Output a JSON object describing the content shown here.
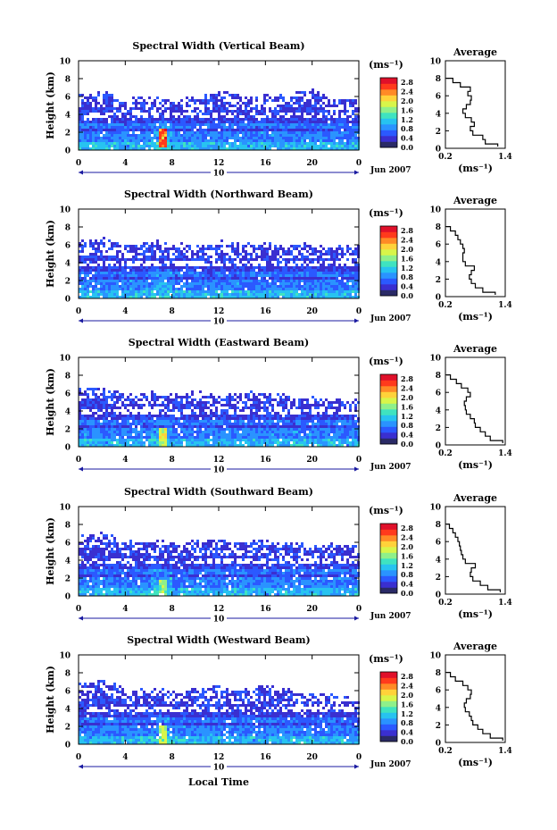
{
  "figure": {
    "xlabel": "Local Time",
    "date_label": "Jun 2007",
    "date_marker": "10",
    "unit_label": "(ms⁻¹)",
    "average_title": "Average"
  },
  "colorbar": {
    "ticks": [
      "0.0",
      "0.4",
      "0.8",
      "1.2",
      "1.6",
      "2.0",
      "2.4",
      "2.8"
    ],
    "range": [
      0.0,
      3.0
    ],
    "colors": [
      "#2a2a66",
      "#3a2fd0",
      "#2b59ff",
      "#2a93ff",
      "#27c3f0",
      "#3fe3c0",
      "#8ff08a",
      "#d8f54a",
      "#ffd23a",
      "#ff8a26",
      "#ff3a1c",
      "#e0102a"
    ]
  },
  "chart_data": [
    {
      "type": "heatmap",
      "title": "Spectral Width (Vertical Beam)",
      "xlabel": "",
      "ylabel": "Height (km)",
      "xlim": [
        0,
        24
      ],
      "ylim": [
        0,
        10
      ],
      "xticks": [
        "0",
        "4",
        "8",
        "12",
        "16",
        "20",
        "0"
      ],
      "yticks": [
        "0",
        "2",
        "4",
        "6",
        "8",
        "10"
      ],
      "colorbar_label": "(ms⁻¹)",
      "values_description": "",
      "top_height_km": [
        6.0,
        6.4,
        5.5,
        5.6,
        5.4,
        5.6,
        6.3,
        5.7,
        5.8,
        6.3,
        6.5,
        5.4,
        5.6
      ],
      "top_times_h": [
        0,
        2,
        4,
        6,
        8,
        10,
        12,
        14,
        16,
        18,
        20,
        22,
        24
      ],
      "hotspot": {
        "time_h": 7,
        "height_km": 1.5,
        "value": 2.8
      },
      "average_profile": {
        "title": "Average",
        "xlabel": "(ms⁻¹)",
        "xlim": [
          0.2,
          1.4
        ],
        "ylim": [
          0,
          10
        ],
        "xticks": [
          "0.2",
          "1.4"
        ],
        "yticks": [
          "0",
          "2",
          "4",
          "6",
          "8",
          "10"
        ],
        "height_km": [
          0.2,
          0.5,
          1.0,
          1.5,
          2.0,
          2.5,
          3.0,
          3.5,
          4.0,
          4.5,
          5.0,
          5.5,
          6.0,
          6.5,
          7.0,
          7.5,
          8.0
        ],
        "width_ms": [
          1.25,
          1.0,
          0.95,
          0.75,
          0.7,
          0.78,
          0.72,
          0.6,
          0.55,
          0.62,
          0.7,
          0.72,
          0.65,
          0.7,
          0.5,
          0.35,
          0.22
        ]
      }
    },
    {
      "type": "heatmap",
      "title": "Spectral Width (Northward Beam)",
      "xlabel": "",
      "ylabel": "Height (km)",
      "xlim": [
        0,
        24
      ],
      "ylim": [
        0,
        10
      ],
      "xticks": [
        "0",
        "4",
        "8",
        "12",
        "16",
        "20",
        "0"
      ],
      "yticks": [
        "0",
        "2",
        "4",
        "6",
        "8",
        "10"
      ],
      "colorbar_label": "(ms⁻¹)",
      "top_height_km": [
        6.2,
        6.4,
        5.8,
        6.2,
        5.8,
        5.9,
        6.1,
        6.0,
        6.0,
        5.8,
        5.9,
        5.8,
        5.6
      ],
      "top_times_h": [
        0,
        2,
        4,
        6,
        8,
        10,
        12,
        14,
        16,
        18,
        20,
        22,
        24
      ],
      "hotspot": {
        "time_h": 7,
        "height_km": 1.5,
        "value": 1.2
      },
      "average_profile": {
        "title": "Average",
        "xlabel": "(ms⁻¹)",
        "xlim": [
          0.2,
          1.4
        ],
        "ylim": [
          0,
          10
        ],
        "xticks": [
          "0.2",
          "1.4"
        ],
        "yticks": [
          "0",
          "2",
          "4",
          "6",
          "8",
          "10"
        ],
        "height_km": [
          0.2,
          0.5,
          1.0,
          1.5,
          2.0,
          2.5,
          3.0,
          3.5,
          4.0,
          4.5,
          5.0,
          5.5,
          6.0,
          6.5,
          7.0,
          7.5,
          8.0
        ],
        "width_ms": [
          1.2,
          0.95,
          0.8,
          0.72,
          0.68,
          0.72,
          0.78,
          0.6,
          0.55,
          0.55,
          0.58,
          0.55,
          0.5,
          0.45,
          0.4,
          0.3,
          0.22
        ]
      }
    },
    {
      "type": "heatmap",
      "title": "Spectral Width (Eastward Beam)",
      "xlabel": "",
      "ylabel": "Height (km)",
      "xlim": [
        0,
        24
      ],
      "ylim": [
        0,
        10
      ],
      "xticks": [
        "0",
        "4",
        "8",
        "12",
        "16",
        "20",
        "0"
      ],
      "yticks": [
        "0",
        "2",
        "4",
        "6",
        "8",
        "10"
      ],
      "colorbar_label": "(ms⁻¹)",
      "top_height_km": [
        6.5,
        6.6,
        5.6,
        5.8,
        5.7,
        5.9,
        5.6,
        5.9,
        5.7,
        5.5,
        5.4,
        5.1,
        5.0
      ],
      "top_times_h": [
        0,
        2,
        4,
        6,
        8,
        10,
        12,
        14,
        16,
        18,
        20,
        22,
        24
      ],
      "hotspot": {
        "time_h": 7,
        "height_km": 1.2,
        "value": 2.2
      },
      "average_profile": {
        "title": "Average",
        "xlabel": "(ms⁻¹)",
        "xlim": [
          0.2,
          1.4
        ],
        "ylim": [
          0,
          10
        ],
        "xticks": [
          "0.2",
          "1.4"
        ],
        "yticks": [
          "0",
          "2",
          "4",
          "6",
          "8",
          "10"
        ],
        "height_km": [
          0.2,
          0.5,
          1.0,
          1.5,
          2.0,
          2.5,
          3.0,
          3.5,
          4.0,
          4.5,
          5.0,
          5.5,
          6.0,
          6.5,
          7.0,
          7.5,
          8.0
        ],
        "width_ms": [
          1.35,
          1.1,
          1.0,
          0.9,
          0.8,
          0.78,
          0.7,
          0.62,
          0.6,
          0.58,
          0.62,
          0.7,
          0.65,
          0.52,
          0.42,
          0.3,
          0.22
        ]
      }
    },
    {
      "type": "heatmap",
      "title": "Spectral Width (Southward Beam)",
      "xlabel": "",
      "ylabel": "Height (km)",
      "xlim": [
        0,
        24
      ],
      "ylim": [
        0,
        10
      ],
      "xticks": [
        "0",
        "4",
        "8",
        "12",
        "16",
        "20",
        "0"
      ],
      "yticks": [
        "0",
        "2",
        "4",
        "6",
        "8",
        "10"
      ],
      "colorbar_label": "(ms⁻¹)",
      "top_height_km": [
        6.5,
        7.0,
        5.8,
        6.0,
        5.8,
        5.9,
        6.0,
        6.0,
        5.8,
        5.6,
        5.6,
        5.6,
        5.4
      ],
      "top_times_h": [
        0,
        2,
        4,
        6,
        8,
        10,
        12,
        14,
        16,
        18,
        20,
        22,
        24
      ],
      "hotspot": {
        "time_h": 7,
        "height_km": 1.0,
        "value": 2.0
      },
      "average_profile": {
        "title": "Average",
        "xlabel": "(ms⁻¹)",
        "xlim": [
          0.2,
          1.4
        ],
        "ylim": [
          0,
          10
        ],
        "xticks": [
          "0.2",
          "1.4"
        ],
        "yticks": [
          "0",
          "2",
          "4",
          "6",
          "8",
          "10"
        ],
        "height_km": [
          0.2,
          0.5,
          1.0,
          1.5,
          2.0,
          2.5,
          3.0,
          3.5,
          4.0,
          4.5,
          5.0,
          5.5,
          6.0,
          6.5,
          7.0,
          7.5,
          8.0
        ],
        "width_ms": [
          1.3,
          1.05,
          0.9,
          0.75,
          0.7,
          0.72,
          0.8,
          0.6,
          0.55,
          0.52,
          0.5,
          0.48,
          0.45,
          0.4,
          0.35,
          0.28,
          0.22
        ]
      }
    },
    {
      "type": "heatmap",
      "title": "Spectral Width (Westward Beam)",
      "xlabel": "Local Time",
      "ylabel": "Height (km)",
      "xlim": [
        0,
        24
      ],
      "ylim": [
        0,
        10
      ],
      "xticks": [
        "0",
        "4",
        "8",
        "12",
        "16",
        "20",
        "0"
      ],
      "yticks": [
        "0",
        "2",
        "4",
        "6",
        "8",
        "10"
      ],
      "colorbar_label": "(ms⁻¹)",
      "top_height_km": [
        6.6,
        6.8,
        6.0,
        5.8,
        5.8,
        6.0,
        6.1,
        6.0,
        6.2,
        5.8,
        5.4,
        5.2,
        5.0
      ],
      "top_times_h": [
        0,
        2,
        4,
        6,
        8,
        10,
        12,
        14,
        16,
        18,
        20,
        22,
        24
      ],
      "hotspot": {
        "time_h": 7,
        "height_km": 1.2,
        "value": 2.0
      },
      "average_profile": {
        "title": "Average",
        "xlabel": "(ms⁻¹)",
        "xlim": [
          0.2,
          1.4
        ],
        "ylim": [
          0,
          10
        ],
        "xticks": [
          "0.2",
          "1.4"
        ],
        "yticks": [
          "0",
          "2",
          "4",
          "6",
          "8",
          "10"
        ],
        "height_km": [
          0.2,
          0.5,
          1.0,
          1.5,
          2.0,
          2.5,
          3.0,
          3.5,
          4.0,
          4.5,
          5.0,
          5.5,
          6.0,
          6.5,
          7.0,
          7.5,
          8.0
        ],
        "width_ms": [
          1.35,
          1.1,
          0.95,
          0.85,
          0.75,
          0.72,
          0.68,
          0.6,
          0.58,
          0.62,
          0.7,
          0.72,
          0.65,
          0.55,
          0.4,
          0.3,
          0.22
        ]
      }
    }
  ]
}
